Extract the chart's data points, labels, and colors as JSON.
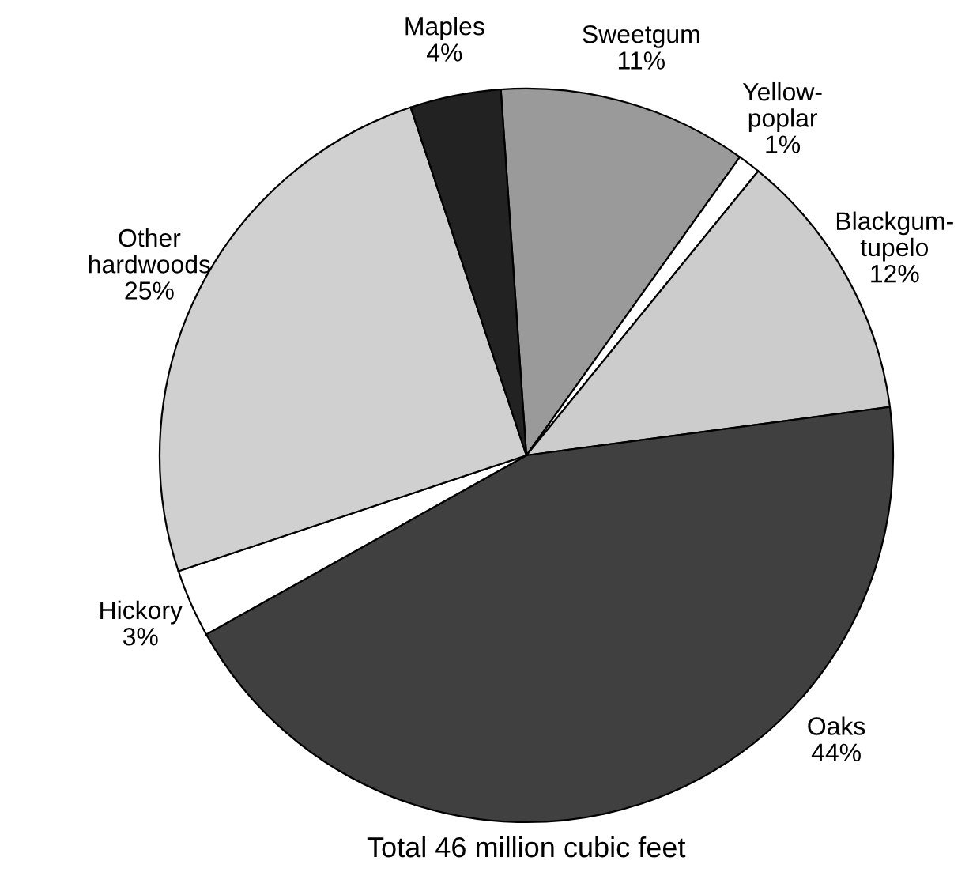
{
  "chart_data": {
    "type": "pie",
    "categories": [
      "Sweetgum",
      "Yellow-\npoplar",
      "Blackgum-\ntupelo",
      "Oaks",
      "Hickory",
      "Other\nhardwoods",
      "Maples"
    ],
    "values": [
      11,
      1,
      12,
      44,
      3,
      25,
      4
    ],
    "value_labels": [
      "11%",
      "1%",
      "12%",
      "44%",
      "3%",
      "25%",
      "4%"
    ],
    "colors": [
      "#9a9a9a",
      "#ffffff",
      "#cccccc",
      "#404040",
      "#ffffff",
      "#d0d0d0",
      "#222222"
    ],
    "annotations": [
      "Total 46 million cubic feet"
    ]
  }
}
